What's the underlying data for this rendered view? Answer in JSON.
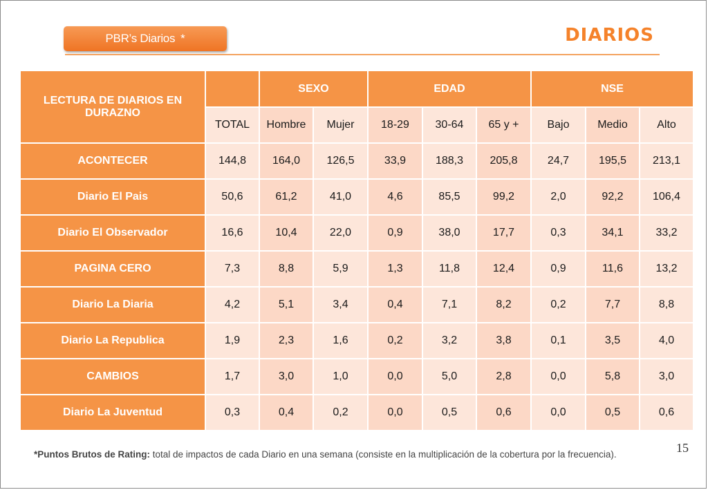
{
  "header": {
    "tag_label": "PBR’s Diarios",
    "tag_star": "*",
    "title": "DIARIOS"
  },
  "table": {
    "corner_label": "LECTURA DE DIARIOS EN DURAZNO",
    "groups": [
      "",
      "SEXO",
      "EDAD",
      "NSE"
    ],
    "columns": [
      "TOTAL",
      "Hombre",
      "Mujer",
      "18-29",
      "30-64",
      "65 y +",
      "Bajo",
      "Medio",
      "Alto"
    ],
    "rows": [
      {
        "label": "ACONTECER",
        "values": [
          "144,8",
          "164,0",
          "126,5",
          "33,9",
          "188,3",
          "205,8",
          "24,7",
          "195,5",
          "213,1"
        ]
      },
      {
        "label": "Diario El Pais",
        "values": [
          "50,6",
          "61,2",
          "41,0",
          "4,6",
          "85,5",
          "99,2",
          "2,0",
          "92,2",
          "106,4"
        ]
      },
      {
        "label": "Diario El Observador",
        "values": [
          "16,6",
          "10,4",
          "22,0",
          "0,9",
          "38,0",
          "17,7",
          "0,3",
          "34,1",
          "33,2"
        ]
      },
      {
        "label": "PAGINA CERO",
        "values": [
          "7,3",
          "8,8",
          "5,9",
          "1,3",
          "11,8",
          "12,4",
          "0,9",
          "11,6",
          "13,2"
        ]
      },
      {
        "label": "Diario La Diaria",
        "values": [
          "4,2",
          "5,1",
          "3,4",
          "0,4",
          "7,1",
          "8,2",
          "0,2",
          "7,7",
          "8,8"
        ]
      },
      {
        "label": "Diario La Republica",
        "values": [
          "1,9",
          "2,3",
          "1,6",
          "0,2",
          "3,2",
          "3,8",
          "0,1",
          "3,5",
          "4,0"
        ]
      },
      {
        "label": "CAMBIOS",
        "values": [
          "1,7",
          "3,0",
          "1,0",
          "0,0",
          "5,0",
          "2,8",
          "0,0",
          "5,8",
          "3,0"
        ]
      },
      {
        "label": "Diario La Juventud",
        "values": [
          "0,3",
          "0,4",
          "0,2",
          "0,0",
          "0,5",
          "0,6",
          "0,0",
          "0,5",
          "0,6"
        ]
      }
    ]
  },
  "footnote": {
    "term": "*Puntos Brutos de Rating:",
    "text": " total de impactos de cada Diario en una semana (consiste en la multiplicación de la cobertura por la frecuencia)."
  },
  "page_number": "15",
  "colors": {
    "accent": "#f59446",
    "title": "#f5822a",
    "cell_light": "#fde6da",
    "cell_dark": "#fcd8c6"
  }
}
